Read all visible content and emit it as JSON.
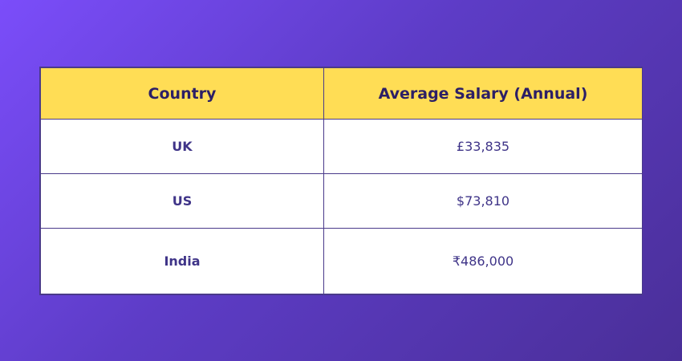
{
  "table": {
    "headers": [
      "Country",
      "Average Salary (Annual)"
    ],
    "rows": [
      {
        "country": "UK",
        "salary": "£33,835"
      },
      {
        "country": "US",
        "salary": "$73,810"
      },
      {
        "country": "India",
        "salary": "₹486,000"
      }
    ]
  },
  "colors": {
    "header_bg": "#ffdd55",
    "header_text": "#2c1f66",
    "cell_text": "#3f3488",
    "gradient_start": "#7b4dfa",
    "gradient_end": "#4a2f98"
  }
}
